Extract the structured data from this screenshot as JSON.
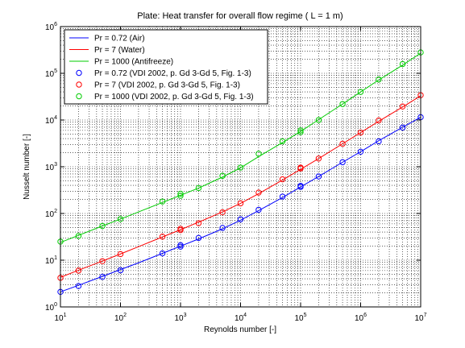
{
  "chart_data": {
    "type": "line",
    "title": "Plate: Heat transfer for overall flow regime ( L = 1 m)",
    "xlabel": "Reynolds number [-]",
    "ylabel": "Nusselt number [-]",
    "xscale": "log",
    "yscale": "log",
    "xlim": [
      10,
      10000000
    ],
    "ylim": [
      1,
      1000000
    ],
    "x_ticks": [
      {
        "value": 10,
        "base": "10",
        "exp": "1"
      },
      {
        "value": 100,
        "base": "10",
        "exp": "2"
      },
      {
        "value": 1000,
        "base": "10",
        "exp": "3"
      },
      {
        "value": 10000,
        "base": "10",
        "exp": "4"
      },
      {
        "value": 100000,
        "base": "10",
        "exp": "5"
      },
      {
        "value": 1000000,
        "base": "10",
        "exp": "6"
      },
      {
        "value": 10000000,
        "base": "10",
        "exp": "7"
      }
    ],
    "y_ticks": [
      {
        "value": 1,
        "base": "10",
        "exp": "0"
      },
      {
        "value": 10,
        "base": "10",
        "exp": "1"
      },
      {
        "value": 100,
        "base": "10",
        "exp": "2"
      },
      {
        "value": 1000,
        "base": "10",
        "exp": "3"
      },
      {
        "value": 10000,
        "base": "10",
        "exp": "4"
      },
      {
        "value": 100000,
        "base": "10",
        "exp": "5"
      },
      {
        "value": 1000000,
        "base": "10",
        "exp": "6"
      }
    ],
    "grid": true,
    "legend_position": "top-left",
    "series": [
      {
        "name": "Pr = 0.72 (Air)",
        "kind": "line",
        "color": "#0000ff",
        "x": [
          10,
          20,
          50,
          100,
          200,
          500,
          1000,
          2000,
          5000,
          10000,
          20000,
          50000,
          100000,
          200000,
          500000,
          1000000,
          2000000,
          5000000,
          10000000
        ],
        "y": [
          2.1,
          2.9,
          4.5,
          6.3,
          8.8,
          14,
          20,
          28.5,
          47,
          72,
          115,
          220,
          370,
          620,
          1250,
          2100,
          3600,
          7000,
          11500
        ]
      },
      {
        "name": "Pr = 7 (Water)",
        "kind": "line",
        "color": "#ff0000",
        "x": [
          10,
          20,
          50,
          100,
          200,
          500,
          1000,
          2000,
          5000,
          10000,
          20000,
          50000,
          100000,
          200000,
          500000,
          1000000,
          2000000,
          5000000,
          10000000
        ],
        "y": [
          4.3,
          6.1,
          9.6,
          13.6,
          19.5,
          31.5,
          45,
          65,
          108,
          165,
          265,
          520,
          880,
          1500,
          3100,
          5400,
          9400,
          19000,
          33000
        ]
      },
      {
        "name": "Pr = 1000 (Antifreeze)",
        "kind": "line",
        "color": "#00cc00",
        "x": [
          10,
          20,
          50,
          100,
          200,
          500,
          1000,
          2000,
          5000,
          10000,
          20000,
          50000,
          100000,
          200000,
          500000,
          1000000,
          2000000,
          5000000,
          10000000
        ],
        "y": [
          24,
          34,
          54,
          76,
          108,
          172,
          245,
          350,
          600,
          950,
          1650,
          3300,
          5700,
          10200,
          22000,
          40000,
          72000,
          150000,
          270000
        ]
      },
      {
        "name": "Pr = 0.72 (VDI 2002, p. Gd 3-Gd 5, Fig. 1-3)",
        "kind": "marker",
        "color": "#0000ff",
        "x": [
          10,
          20,
          50,
          100,
          500,
          1000,
          1000,
          2000,
          5000,
          10000,
          20000,
          50000,
          100000,
          100000,
          200000,
          500000,
          1000000,
          2000000,
          5000000,
          10000000
        ],
        "y": [
          2.1,
          2.8,
          4.4,
          6.1,
          14,
          19.5,
          21,
          30,
          49,
          75,
          120,
          230,
          370,
          390,
          620,
          1250,
          2100,
          3500,
          6900,
          11500
        ]
      },
      {
        "name": "Pr = 7 (VDI 2002, p. Gd 3-Gd 5, Fig. 1-3)",
        "kind": "marker",
        "color": "#ff0000",
        "x": [
          10,
          20,
          50,
          100,
          500,
          1000,
          1000,
          2000,
          5000,
          10000,
          20000,
          50000,
          100000,
          100000,
          200000,
          500000,
          1000000,
          2000000,
          5000000,
          10000000
        ],
        "y": [
          4.2,
          6.0,
          9.5,
          13.5,
          32,
          44,
          47,
          62,
          106,
          165,
          280,
          540,
          920,
          960,
          1500,
          3100,
          5400,
          9800,
          19500,
          34000
        ]
      },
      {
        "name": "Pr = 1000 (VDI 2002, p. Gd 3-Gd 5, Fig. 1-3)",
        "kind": "marker",
        "color": "#00cc00",
        "x": [
          10,
          20,
          50,
          100,
          500,
          1000,
          1000,
          2000,
          5000,
          10000,
          20000,
          50000,
          100000,
          100000,
          200000,
          500000,
          1000000,
          2000000,
          5000000,
          10000000
        ],
        "y": [
          25,
          33,
          54,
          76,
          180,
          240,
          265,
          350,
          640,
          960,
          1900,
          3500,
          5500,
          6000,
          10000,
          22000,
          40000,
          74000,
          158000,
          280000
        ]
      }
    ]
  }
}
